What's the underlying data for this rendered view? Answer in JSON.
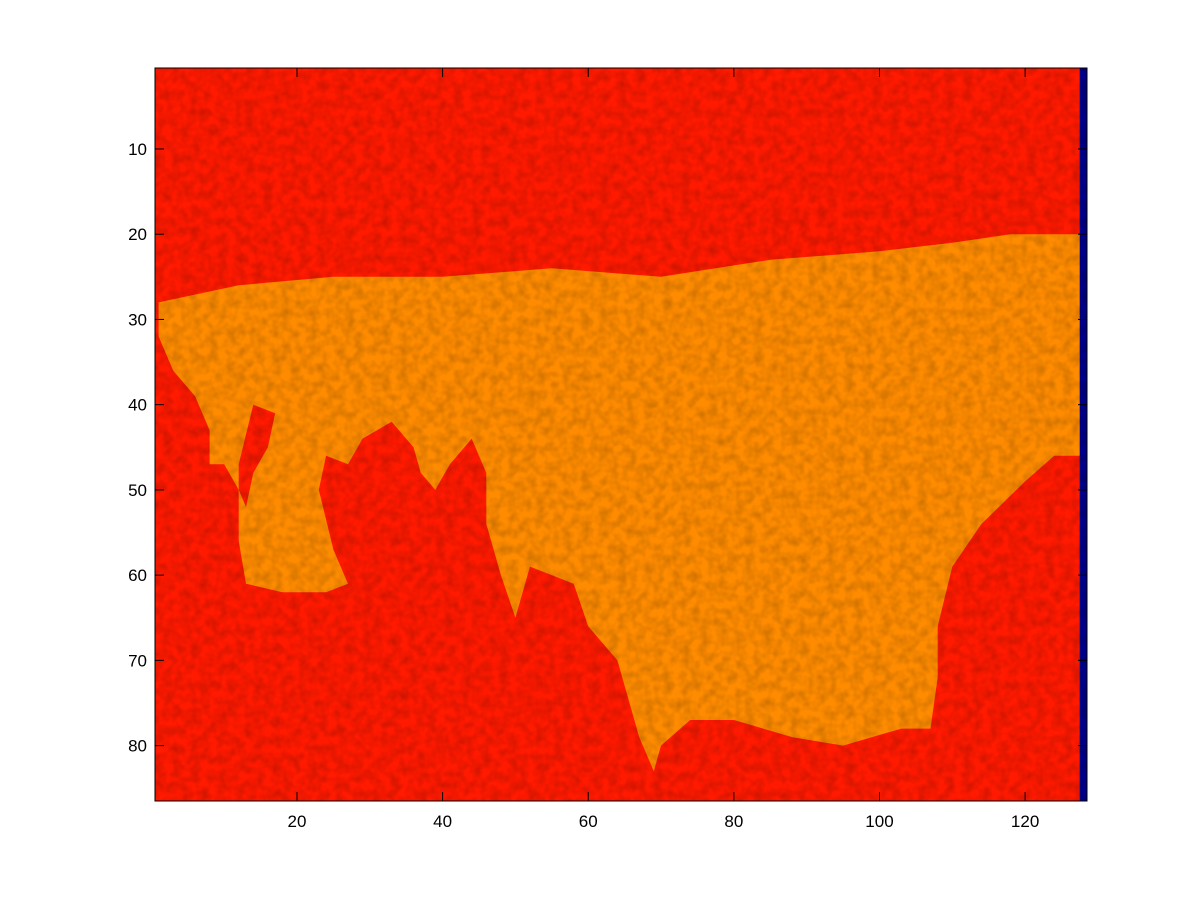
{
  "chart_data": {
    "type": "heatmap",
    "title": "",
    "xlabel": "",
    "ylabel": "",
    "xlim": [
      0.5,
      128.5
    ],
    "ylim": [
      0.5,
      86.5
    ],
    "y_reversed": true,
    "x_ticks": [
      20,
      40,
      60,
      80,
      100,
      120
    ],
    "y_ticks": [
      10,
      20,
      30,
      40,
      50,
      60,
      70,
      80
    ],
    "grid": false,
    "colormap": "hot",
    "colors": {
      "background_region": "#ff1a00",
      "foreground_region": "#ff8c00",
      "right_edge_column": "#00008b"
    },
    "regions": [
      {
        "name": "orange-region",
        "color": "#ff8c00",
        "polygon": [
          [
            1,
            28
          ],
          [
            12,
            26
          ],
          [
            25,
            25
          ],
          [
            40,
            25
          ],
          [
            55,
            24
          ],
          [
            70,
            25
          ],
          [
            85,
            23
          ],
          [
            100,
            22
          ],
          [
            110,
            21
          ],
          [
            118,
            20
          ],
          [
            128,
            20
          ],
          [
            128,
            46
          ],
          [
            124,
            46
          ],
          [
            120,
            49
          ],
          [
            114,
            54
          ],
          [
            110,
            59
          ],
          [
            108,
            66
          ],
          [
            108,
            72
          ],
          [
            107,
            78
          ],
          [
            103,
            78
          ],
          [
            95,
            80
          ],
          [
            88,
            79
          ],
          [
            80,
            77
          ],
          [
            74,
            77
          ],
          [
            70,
            80
          ],
          [
            69,
            83
          ],
          [
            67,
            79
          ],
          [
            64,
            70
          ],
          [
            60,
            66
          ],
          [
            58,
            61
          ],
          [
            52,
            59
          ],
          [
            50,
            65
          ],
          [
            48,
            60
          ],
          [
            46,
            54
          ],
          [
            46,
            48
          ],
          [
            44,
            44
          ],
          [
            41,
            47
          ],
          [
            39,
            50
          ],
          [
            37,
            48
          ],
          [
            36,
            45
          ],
          [
            33,
            42
          ],
          [
            29,
            44
          ],
          [
            27,
            47
          ],
          [
            24,
            46
          ],
          [
            23,
            50
          ],
          [
            25,
            57
          ],
          [
            27,
            61
          ],
          [
            24,
            62
          ],
          [
            18,
            62
          ],
          [
            13,
            61
          ],
          [
            12,
            56
          ],
          [
            12,
            50
          ],
          [
            10,
            47
          ],
          [
            8,
            47
          ],
          [
            8,
            43
          ],
          [
            6,
            39
          ],
          [
            3,
            36
          ],
          [
            1,
            32
          ]
        ]
      },
      {
        "name": "red-tongue",
        "color": "#ff1a00",
        "polygon": [
          [
            14,
            40
          ],
          [
            17,
            41
          ],
          [
            16,
            45
          ],
          [
            14,
            48
          ],
          [
            13,
            52
          ],
          [
            12,
            50
          ],
          [
            12,
            47
          ]
        ]
      }
    ],
    "edge_column": {
      "x": 128,
      "color": "#00008b"
    }
  }
}
